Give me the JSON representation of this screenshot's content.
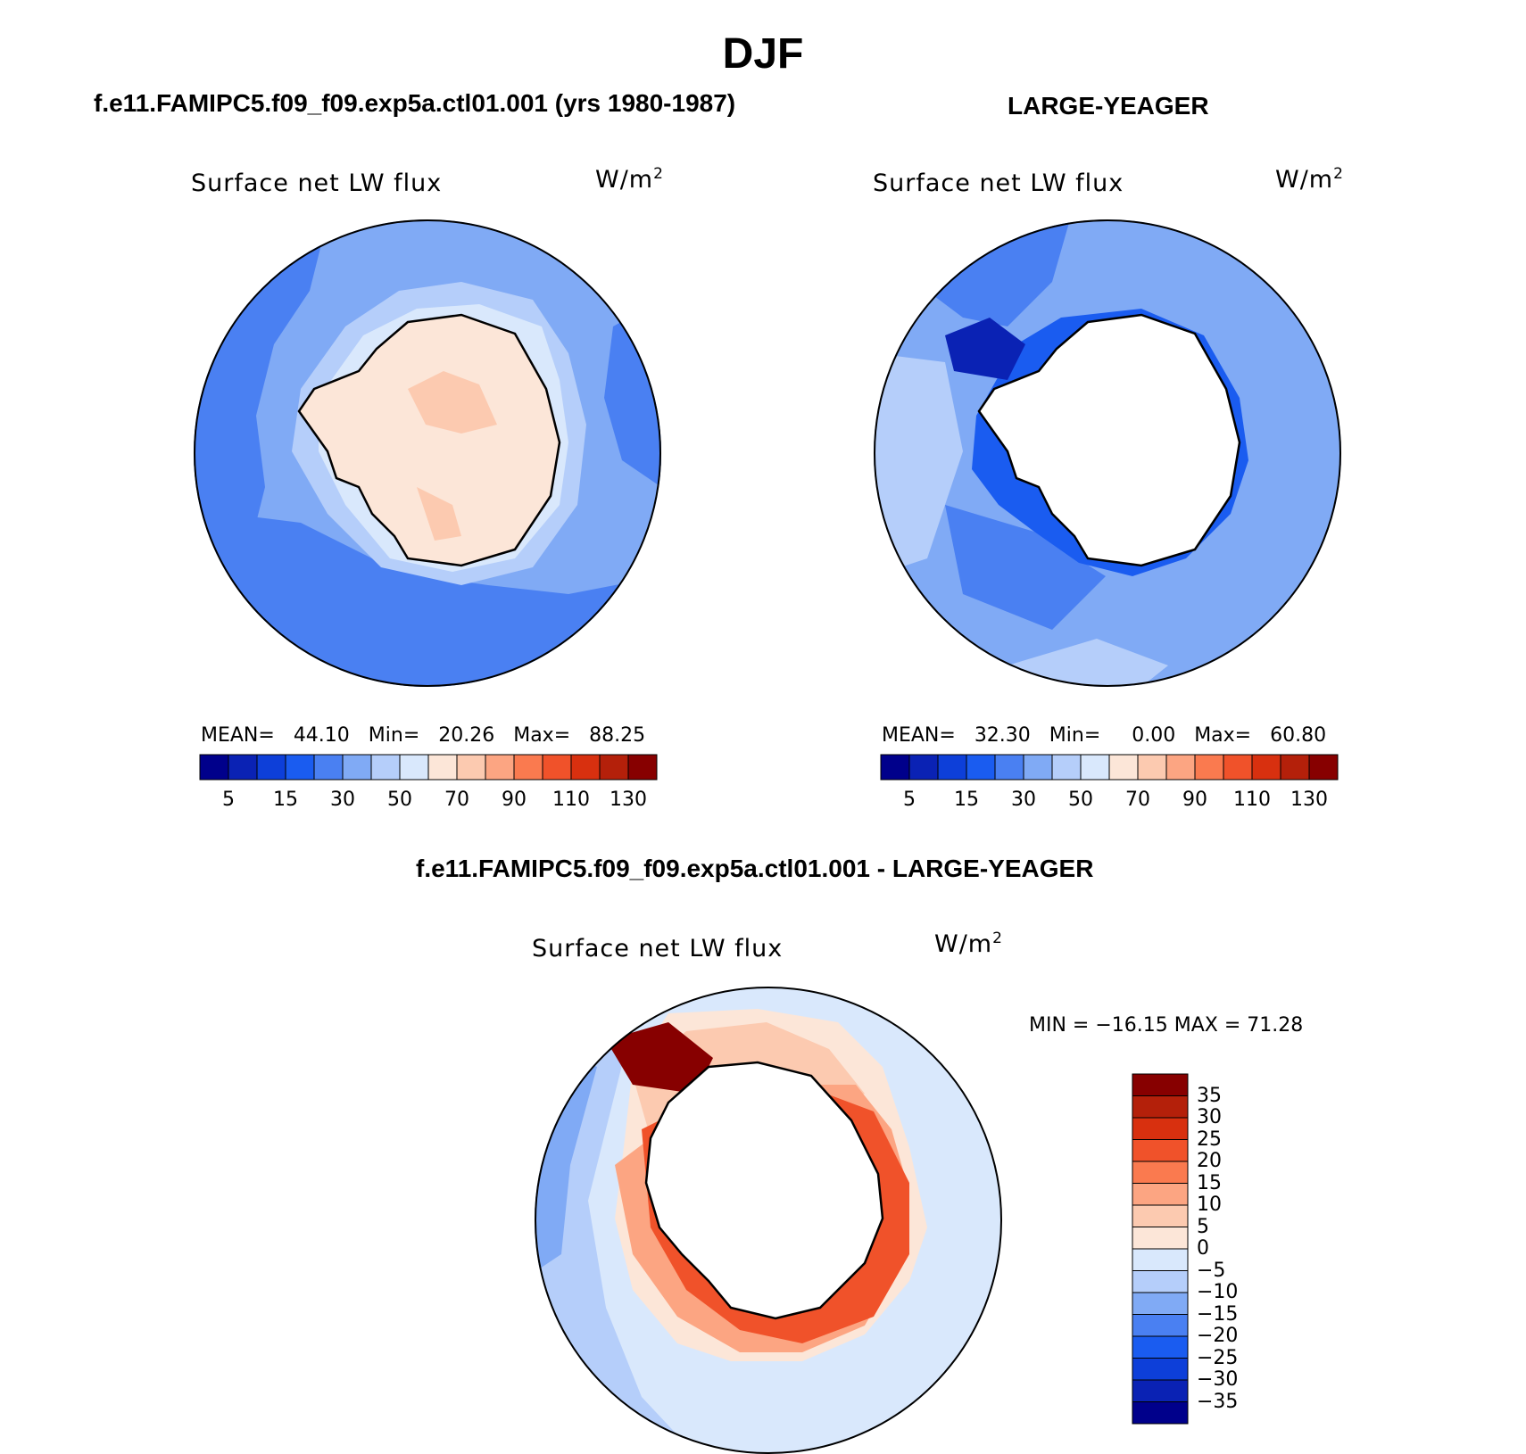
{
  "title": "DJF",
  "panels": {
    "top_left": {
      "case": "f.e11.FAMIPC5.f09_f09.exp5a.ctl01.001 (yrs 1980-1987)",
      "variable": "Surface net LW flux",
      "units_base": "W/m",
      "units_exp": "2",
      "stats": {
        "mean_label": "MEAN=",
        "mean": "44.10",
        "min_label": "Min=",
        "min": "20.26",
        "max_label": "Max=",
        "max": "88.25"
      }
    },
    "top_right": {
      "case": "LARGE-YEAGER",
      "variable": "Surface net LW flux",
      "units_base": "W/m",
      "units_exp": "2",
      "stats": {
        "mean_label": "MEAN=",
        "mean": "32.30",
        "min_label": "Min=",
        "min": "0.00",
        "max_label": "Max=",
        "max": "60.80"
      }
    },
    "bottom": {
      "case": "f.e11.FAMIPC5.f09_f09.exp5a.ctl01.001 - LARGE-YEAGER",
      "variable": "Surface net LW flux",
      "units_base": "W/m",
      "units_exp": "2",
      "minmax": "MIN = −16.15 MAX =  71.28"
    }
  },
  "colorbar_abs": {
    "colors": [
      "#00008b",
      "#0a22b4",
      "#0d3fd9",
      "#1a5cf0",
      "#4a80f2",
      "#80aaf5",
      "#b5cefa",
      "#d9e8fc",
      "#fce6d8",
      "#fccab0",
      "#fca582",
      "#fa7a4f",
      "#f0522a",
      "#d8300f",
      "#b4200a",
      "#870000"
    ],
    "tick_labels": [
      "5",
      "15",
      "30",
      "50",
      "70",
      "90",
      "110",
      "130"
    ]
  },
  "colorbar_diff": {
    "colors": [
      "#00008b",
      "#0a22b4",
      "#0d3fd9",
      "#1a5cf0",
      "#4a80f2",
      "#80aaf5",
      "#b5cefa",
      "#d9e8fc",
      "#fce6d8",
      "#fccab0",
      "#fca582",
      "#fa7a4f",
      "#f0522a",
      "#d8300f",
      "#b4200a",
      "#870000"
    ],
    "tick_labels": [
      "35",
      "30",
      "25",
      "20",
      "15",
      "10",
      "5",
      "0",
      "−5",
      "−10",
      "−15",
      "−20",
      "−25",
      "−30",
      "−35"
    ]
  },
  "map_colors": {
    "ocean_deep": "#4a80f2",
    "ocean_mid": "#80aaf5",
    "ocean_light": "#b5cefa",
    "ocean_pale": "#d9e8fc",
    "land_warm": "#fce6d8",
    "land_warm2": "#fccab0",
    "ice_dark": "#0a22b4",
    "land_white": "#ffffff",
    "diff_hot": "#870000",
    "diff_warm": "#f0522a",
    "diff_salmon": "#fca582",
    "diff_peach": "#fccab0"
  }
}
